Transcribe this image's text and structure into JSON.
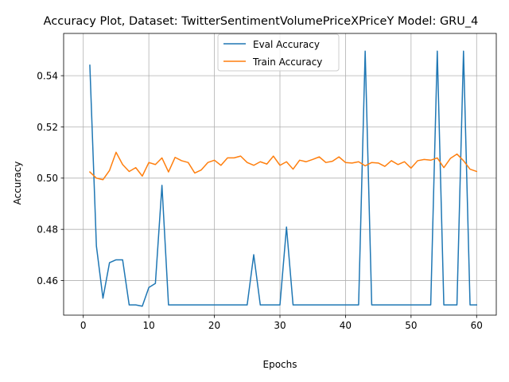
{
  "chart_data": {
    "type": "line",
    "title": "Accuracy Plot, Dataset: TwitterSentimentVolumePriceXPriceY Model: GRU_4",
    "xlabel": "Epochs",
    "ylabel": "Accuracy",
    "xlim": [
      -3,
      63
    ],
    "ylim": [
      0.4465,
      0.5565
    ],
    "x_ticks": [
      0,
      10,
      20,
      30,
      40,
      50,
      60
    ],
    "y_ticks": [
      0.46,
      0.48,
      0.5,
      0.52,
      0.54
    ],
    "y_tick_labels": [
      "0.46",
      "0.48",
      "0.50",
      "0.52",
      "0.54"
    ],
    "grid": true,
    "legend_position": "top-center",
    "x": [
      1,
      2,
      3,
      4,
      5,
      6,
      7,
      8,
      9,
      10,
      11,
      12,
      13,
      14,
      15,
      16,
      17,
      18,
      19,
      20,
      21,
      22,
      23,
      24,
      25,
      26,
      27,
      28,
      29,
      30,
      31,
      32,
      33,
      34,
      35,
      36,
      37,
      38,
      39,
      40,
      41,
      42,
      43,
      44,
      45,
      46,
      47,
      48,
      49,
      50,
      51,
      52,
      53,
      54,
      55,
      56,
      57,
      58,
      59,
      60
    ],
    "series": [
      {
        "name": "Eval Accuracy",
        "color": "#1f77b4",
        "values": [
          0.5441,
          0.4735,
          0.4531,
          0.467,
          0.4681,
          0.4681,
          0.4505,
          0.4505,
          0.45,
          0.4573,
          0.4589,
          0.4972,
          0.4505,
          0.4505,
          0.4505,
          0.4505,
          0.4505,
          0.4505,
          0.4505,
          0.4505,
          0.4505,
          0.4505,
          0.4505,
          0.4505,
          0.4505,
          0.4701,
          0.4505,
          0.4505,
          0.4505,
          0.4505,
          0.4809,
          0.4505,
          0.4505,
          0.4505,
          0.4505,
          0.4505,
          0.4505,
          0.4505,
          0.4505,
          0.4505,
          0.4505,
          0.4505,
          0.5496,
          0.4505,
          0.4505,
          0.4505,
          0.4505,
          0.4505,
          0.4505,
          0.4505,
          0.4505,
          0.4505,
          0.4505,
          0.5496,
          0.4505,
          0.4505,
          0.4505,
          0.5496,
          0.4505,
          0.4505
        ]
      },
      {
        "name": "Train Accuracy",
        "color": "#ff7f0e",
        "values": [
          0.5024,
          0.5,
          0.4994,
          0.503,
          0.5101,
          0.5053,
          0.5026,
          0.5041,
          0.5008,
          0.5061,
          0.5053,
          0.5079,
          0.5024,
          0.5081,
          0.5068,
          0.5061,
          0.502,
          0.5032,
          0.5061,
          0.507,
          0.505,
          0.5079,
          0.5079,
          0.5086,
          0.5061,
          0.505,
          0.5064,
          0.5055,
          0.5086,
          0.505,
          0.5064,
          0.5035,
          0.507,
          0.5064,
          0.5073,
          0.5083,
          0.5061,
          0.5066,
          0.5083,
          0.5061,
          0.5059,
          0.5064,
          0.5048,
          0.5061,
          0.5059,
          0.5046,
          0.5068,
          0.5053,
          0.5064,
          0.5039,
          0.5068,
          0.5073,
          0.507,
          0.5079,
          0.5041,
          0.5077,
          0.5094,
          0.5068,
          0.5035,
          0.5026
        ]
      }
    ]
  }
}
